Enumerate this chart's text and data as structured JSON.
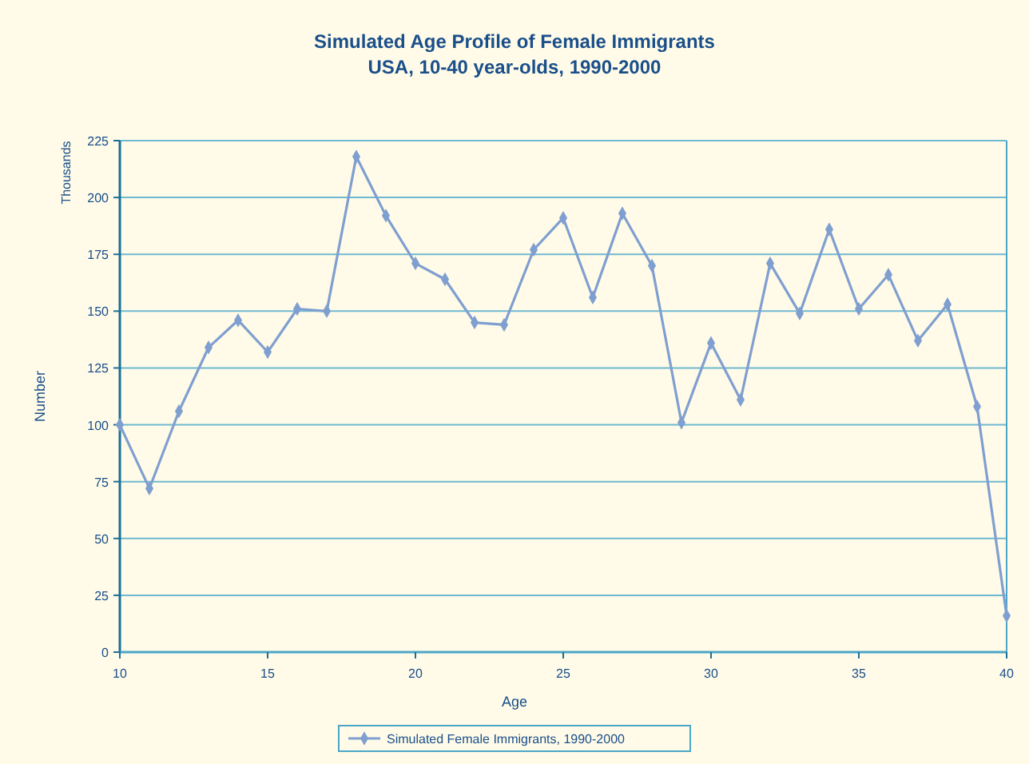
{
  "chart_data": {
    "type": "line",
    "title": "Simulated Age Profile of Female Immigrants",
    "subtitle": "USA, 10-40 year-olds, 1990-2000",
    "xlabel": "Age",
    "ylabel": "Number",
    "annotations": [
      "Thousands"
    ],
    "x": [
      10,
      11,
      12,
      13,
      14,
      15,
      16,
      17,
      18,
      19,
      20,
      21,
      22,
      23,
      24,
      25,
      26,
      27,
      28,
      29,
      30,
      31,
      32,
      33,
      34,
      35,
      36,
      37,
      38,
      39,
      40
    ],
    "series": [
      {
        "name": "Simulated Female Immigrants, 1990-2000",
        "color": "#7f9fd0",
        "values": [
          100,
          72,
          106,
          134,
          146,
          132,
          151,
          150,
          218,
          192,
          171,
          164,
          145,
          144,
          177,
          191,
          156,
          193,
          170,
          101,
          136,
          111,
          171,
          149,
          186,
          151,
          166,
          137,
          153,
          108,
          16
        ]
      }
    ],
    "xlim": [
      10,
      40
    ],
    "xticks": [
      10,
      15,
      20,
      25,
      30,
      35,
      40
    ],
    "ylim": [
      0,
      225
    ],
    "yticks": [
      0,
      25,
      50,
      75,
      100,
      125,
      150,
      175,
      200,
      225
    ],
    "grid": "y",
    "legend": "bottom",
    "marker": "diamond",
    "line_style": "solid"
  }
}
